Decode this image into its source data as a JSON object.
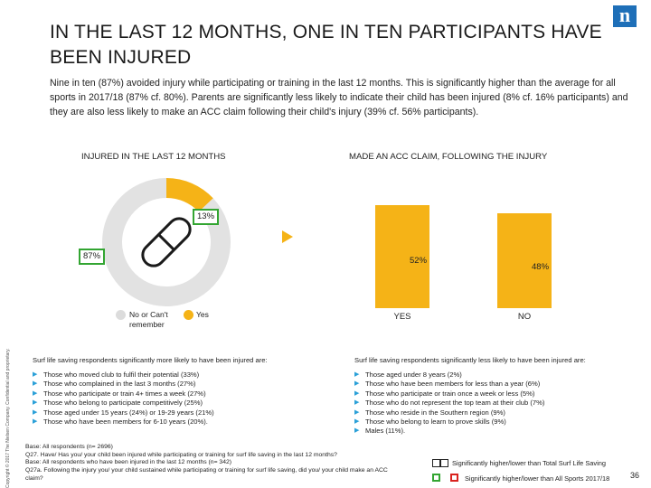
{
  "header": {
    "title": "IN THE LAST 12 MONTHS, ONE IN TEN PARTICIPANTS HAVE BEEN INJURED",
    "logo_letter": "n",
    "intro": "Nine in ten (87%) avoided injury while participating or training in the last 12 months. This is significantly higher than the average for all sports in 2017/18 (87% cf. 80%). Parents are significantly less likely to indicate their child has been injured (8% cf. 16% participants) and they are also less likely to make an ACC claim following their child's injury (39% cf. 56% participants)."
  },
  "left_panel": {
    "heading": "INJURED IN THE LAST 12 MONTHS",
    "icon": "pill-icon",
    "slices": [
      {
        "label": "Yes",
        "value": 13,
        "display": "13%",
        "color": "#f5b317"
      },
      {
        "label": "No or Can't remember",
        "value": 87,
        "display": "87%",
        "color": "#e2e2e2"
      }
    ],
    "legend": [
      {
        "label": "No or Can't remember",
        "color": "#dcdcdc"
      },
      {
        "label": "Yes",
        "color": "#f5b317"
      }
    ]
  },
  "right_panel": {
    "heading": "MADE AN ACC CLAIM, FOLLOWING THE INJURY"
  },
  "chart_data": [
    {
      "type": "pie",
      "title": "INJURED IN THE LAST 12 MONTHS",
      "categories": [
        "No or Can't remember",
        "Yes"
      ],
      "values": [
        87,
        13
      ],
      "legend": "bottom"
    },
    {
      "type": "bar",
      "title": "MADE AN ACC CLAIM, FOLLOWING THE INJURY",
      "categories": [
        "YES",
        "NO"
      ],
      "values": [
        52,
        48
      ],
      "labels": [
        "52%",
        "48%"
      ],
      "ylim": [
        0,
        100
      ]
    }
  ],
  "notes_left": {
    "heading": "Surf life saving respondents significantly more likely to have been injured are:",
    "items": [
      "Those who moved club to fulfil their potential (33%)",
      "Those who complained in the last 3 months (27%)",
      "Those who participate or train 4+ times a week (27%)",
      "Those who belong to participate competitively (25%)",
      "Those aged under 15 years (24%) or 19-29 years (21%)",
      "Those who have been members for 6-10 years (20%)."
    ]
  },
  "notes_right": {
    "heading": "Surf life saving respondents significantly less likely to have been injured are:",
    "items": [
      "Those aged under 8 years (2%)",
      "Those who have been members for less than a year (6%)",
      "Those who participate or train once a week or less (5%)",
      "Those who do not represent the top team at their club (7%)",
      "Those who reside in the Southern region (9%)",
      "Those who belong to learn to prove skills (9%)",
      "Males (11%)."
    ]
  },
  "base": {
    "line1": "Base: All respondents (n= 2696)",
    "line2": "Q27. Have/ Has you/ your child been injured while participating or training for surf life saving in the last 12 months?",
    "line3": "Base: All respondents who have been injured in the last 12 months (n= 342)",
    "line4": "Q27a. Following the injury you/ your child sustained while participating or training for surf life saving, did you/ your child make an ACC",
    "line5": "claim?"
  },
  "significance": {
    "total_surf": "Significantly higher/lower than Total Surf Life Saving",
    "all_sports": "Significantly higher/lower than All Sports 2017/18",
    "green": "#33a532",
    "red": "#d9231f"
  },
  "footer": {
    "sidebar": "Copyright © 2017 The Nielsen Company. Confidential and proprietary.",
    "page": "36"
  }
}
